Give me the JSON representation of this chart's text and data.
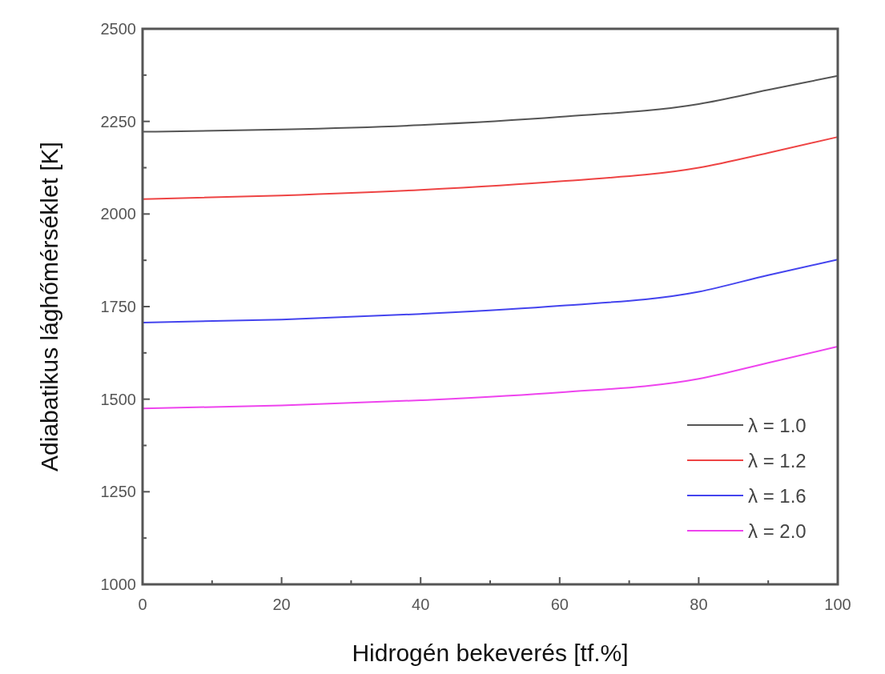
{
  "chart_data": {
    "type": "line",
    "xlabel": "Hidrogén bekeverés [tf.%]",
    "ylabel": "Adiabatikus lághőmérséklet  [K]",
    "x": [
      0,
      20,
      40,
      60,
      80,
      90,
      100
    ],
    "series": [
      {
        "name": "λ = 1.0",
        "color": "#555555",
        "values": [
          2222,
          2228,
          2240,
          2262,
          2297,
          2335,
          2373
        ]
      },
      {
        "name": "λ = 1.2",
        "color": "#ee4444",
        "values": [
          2040,
          2050,
          2065,
          2088,
          2125,
          2165,
          2208
        ]
      },
      {
        "name": "λ = 1.6",
        "color": "#4444ee",
        "values": [
          1707,
          1715,
          1730,
          1752,
          1790,
          1835,
          1877
        ]
      },
      {
        "name": "λ = 2.0",
        "color": "#ee44ee",
        "values": [
          1475,
          1483,
          1497,
          1518,
          1555,
          1598,
          1642
        ]
      }
    ],
    "xlim": [
      0,
      100
    ],
    "ylim": [
      1000,
      2500
    ],
    "xticks": [
      0,
      {
        "value": 10,
        "label": null
      },
      20,
      {
        "value": 30,
        "label": null
      },
      40,
      {
        "value": 50,
        "label": null
      },
      60,
      {
        "value": 70,
        "label": null
      },
      80,
      {
        "value": 90,
        "label": null
      },
      100
    ],
    "yticks": [
      1000,
      {
        "value": 1125,
        "label": null
      },
      1250,
      {
        "value": 1375,
        "label": null
      },
      1500,
      {
        "value": 1625,
        "label": null
      },
      1750,
      {
        "value": 1875,
        "label": null
      },
      2000,
      {
        "value": 2125,
        "label": null
      },
      2250,
      {
        "value": 2375,
        "label": null
      },
      2500
    ],
    "legend": "bottom right",
    "grid": false,
    "marker": "none",
    "line_style": "solid"
  }
}
